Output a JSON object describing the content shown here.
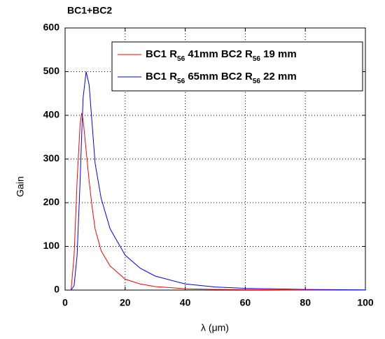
{
  "chart_data": {
    "type": "line",
    "title": "BC1+BC2",
    "xlabel": "λ (μm)",
    "ylabel": "Gain",
    "x": [
      2,
      3,
      4,
      5,
      5.5,
      6,
      7,
      8,
      9,
      10,
      12,
      15,
      20,
      25,
      30,
      40,
      50,
      60,
      80,
      100
    ],
    "series": [
      {
        "name": "BC1 R56 41mm BC2 R56 19 mm",
        "color": "#ff0000",
        "values": [
          0,
          80,
          250,
          380,
          405,
          390,
          320,
          250,
          190,
          140,
          90,
          55,
          25,
          14,
          8,
          3,
          1.5,
          1,
          0.3,
          0
        ]
      },
      {
        "name": "BC1 R56 65mm BC2 R56 22 mm",
        "color": "#0000ff",
        "values": [
          0,
          10,
          80,
          250,
          350,
          440,
          500,
          470,
          380,
          290,
          210,
          140,
          80,
          50,
          32,
          14,
          7,
          4,
          1.5,
          0.5
        ]
      }
    ],
    "xlim": [
      0,
      100
    ],
    "xticks": [
      0,
      20,
      40,
      60,
      80,
      100
    ],
    "ylim": [
      0,
      600
    ],
    "yticks": [
      0,
      100,
      200,
      300,
      400,
      500,
      600
    ],
    "grid": true,
    "legend": "upper right"
  }
}
